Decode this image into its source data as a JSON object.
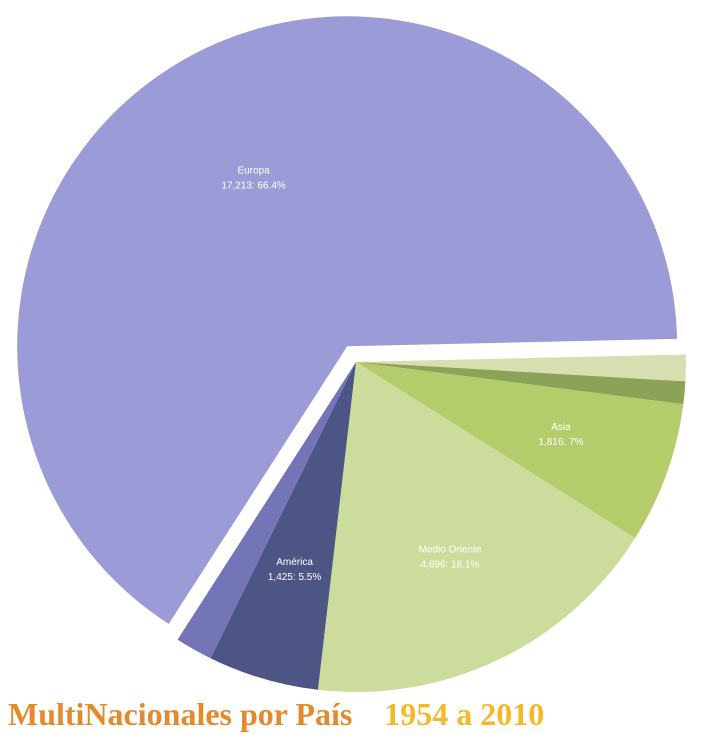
{
  "chart_data": {
    "type": "pie",
    "slices": [
      {
        "name": "Europa",
        "value": 17213,
        "percent_label": "66.4%",
        "label_line2": "17,213:  66.4%",
        "color": "#9b9bd8",
        "show_label": true,
        "exploded": true
      },
      {
        "name": "",
        "value": 341,
        "percent_label": "",
        "label_line2": "",
        "color": "#d7dfb0",
        "show_label": false,
        "exploded": false
      },
      {
        "name": "",
        "value": 290,
        "percent_label": "",
        "label_line2": "",
        "color": "#8ba257",
        "show_label": false,
        "exploded": false
      },
      {
        "name": "Asia",
        "value": 1816,
        "percent_label": "7%",
        "label_line2": "1,816:  7%",
        "color": "#b4cc6a",
        "show_label": true,
        "exploded": false
      },
      {
        "name": "Medio Oriente",
        "value": 4696,
        "percent_label": "18.1%",
        "label_line2": "4,696:  18.1%",
        "color": "#ccdc9c",
        "show_label": true,
        "exploded": false
      },
      {
        "name": "América",
        "value": 1425,
        "percent_label": "5.5%",
        "label_line2": "1,425:  5.5%",
        "color": "#4c5584",
        "show_label": true,
        "exploded": false
      },
      {
        "name": "",
        "value": 480,
        "percent_label": "",
        "label_line2": "",
        "color": "#7474b8",
        "show_label": false,
        "exploded": false
      }
    ]
  },
  "footer": {
    "title": "MultiNacionales por País",
    "title_color": "#e48a2e",
    "years": "1954 a 2010",
    "years_color": "#f5b82a"
  }
}
